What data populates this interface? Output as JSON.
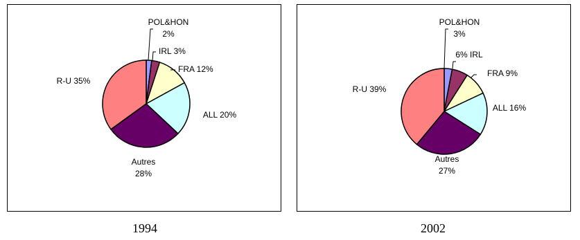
{
  "chart_data": [
    {
      "type": "pie",
      "caption": "1994",
      "slices": [
        {
          "name": "POL&HON",
          "value": 2,
          "label_lines": [
            "POL&HON",
            "2%"
          ],
          "color": "#9999ff"
        },
        {
          "name": "IRL",
          "value": 3,
          "label_lines": [
            "IRL  3%"
          ],
          "color": "#993366"
        },
        {
          "name": "FRA",
          "value": 12,
          "label_lines": [
            "FRA  12%"
          ],
          "color": "#ffffcc"
        },
        {
          "name": "ALL",
          "value": 20,
          "label_lines": [
            "ALL  20%"
          ],
          "color": "#ccffff"
        },
        {
          "name": "Autres",
          "value": 28,
          "label_lines": [
            "Autres",
            "28%"
          ],
          "color": "#660066"
        },
        {
          "name": "R-U",
          "value": 35,
          "label_lines": [
            "R-U  35%"
          ],
          "color": "#ff8080"
        }
      ]
    },
    {
      "type": "pie",
      "caption": "2002",
      "slices": [
        {
          "name": "POL&HON",
          "value": 3,
          "label_lines": [
            "POL&HON",
            "3%"
          ],
          "color": "#9999ff"
        },
        {
          "name": "IRL",
          "value": 6,
          "label_lines": [
            "6%  IRL"
          ],
          "color": "#993366"
        },
        {
          "name": "FRA",
          "value": 9,
          "label_lines": [
            "FRA  9%"
          ],
          "color": "#ffffcc"
        },
        {
          "name": "ALL",
          "value": 16,
          "label_lines": [
            "ALL  16%"
          ],
          "color": "#ccffff"
        },
        {
          "name": "Autres",
          "value": 27,
          "label_lines": [
            "Autres",
            "27%"
          ],
          "color": "#660066"
        },
        {
          "name": "R-U",
          "value": 39,
          "label_lines": [
            "R-U  39%"
          ],
          "color": "#ff8080"
        }
      ]
    }
  ]
}
